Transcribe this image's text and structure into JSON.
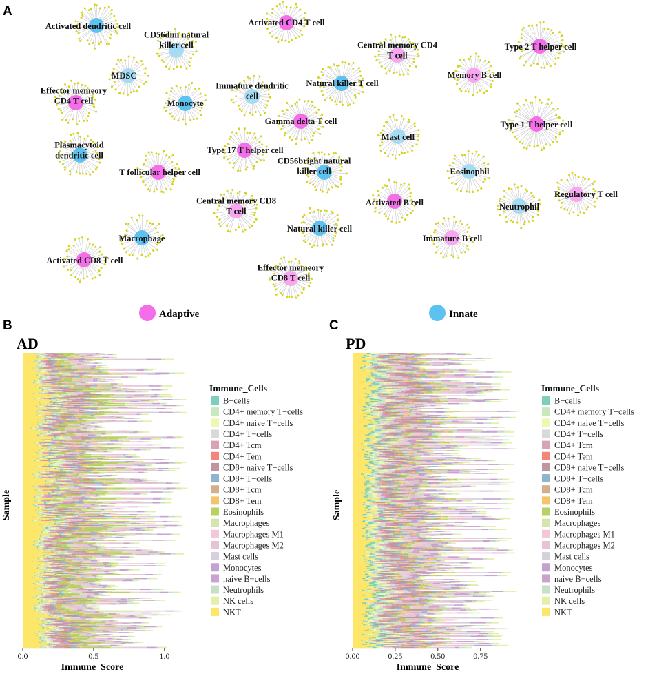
{
  "panels": {
    "a": "A",
    "b": "B",
    "c": "C"
  },
  "network": {
    "legend": [
      {
        "name": "Adaptive",
        "color": "#f36ee8"
      },
      {
        "name": "Innate",
        "color": "#5ec2f0"
      }
    ],
    "colors": {
      "adaptive": "#f36ee8",
      "adaptive_light": "#f7a6ef",
      "innate": "#5ec2f0",
      "innate_light": "#a6dcf3",
      "gene": "#d4d41a",
      "edge": "#c8c8c8"
    },
    "nodes": [
      {
        "id": "activated-dendritic-cell",
        "lines": [
          "Activated dendritic cell"
        ],
        "type": "innate",
        "tone": "strong"
      },
      {
        "id": "activated-cd4-t-cell",
        "lines": [
          "Activated CD4 T cell"
        ],
        "type": "adaptive",
        "tone": "strong"
      },
      {
        "id": "cd56dim-nk-cell",
        "lines": [
          "CD56dim natural",
          "killer cell"
        ],
        "type": "innate",
        "tone": "light"
      },
      {
        "id": "central-memory-cd4-t-cell",
        "lines": [
          "Central memory CD4",
          "T cell"
        ],
        "type": "adaptive",
        "tone": "light"
      },
      {
        "id": "type-2-t-helper-cell",
        "lines": [
          "Type 2 T helper cell"
        ],
        "type": "adaptive",
        "tone": "strong"
      },
      {
        "id": "mdsc",
        "lines": [
          "MDSC"
        ],
        "type": "innate",
        "tone": "light"
      },
      {
        "id": "memory-b-cell",
        "lines": [
          "Memory B cell"
        ],
        "type": "adaptive",
        "tone": "light"
      },
      {
        "id": "natural-killer-t-cell",
        "lines": [
          "Natural killer T cell"
        ],
        "type": "innate",
        "tone": "strong"
      },
      {
        "id": "effector-memory-cd4-t-cell",
        "lines": [
          "Effector memeory",
          "CD4 T cell"
        ],
        "type": "adaptive",
        "tone": "strong"
      },
      {
        "id": "monocyte",
        "lines": [
          "Monocyte"
        ],
        "type": "innate",
        "tone": "strong"
      },
      {
        "id": "immature-dendritic-cell",
        "lines": [
          "Immature dendritic",
          "cell"
        ],
        "type": "innate",
        "tone": "light"
      },
      {
        "id": "gamma-delta-t-cell",
        "lines": [
          "Gamma delta T cell"
        ],
        "type": "adaptive",
        "tone": "strong"
      },
      {
        "id": "type-1-t-helper-cell",
        "lines": [
          "Type 1 T helper cell"
        ],
        "type": "adaptive",
        "tone": "strong"
      },
      {
        "id": "mast-cell",
        "lines": [
          "Mast cell"
        ],
        "type": "innate",
        "tone": "light"
      },
      {
        "id": "plasmacytoid-dendritic-cell",
        "lines": [
          "Plasmacytoid",
          "dendritic cell"
        ],
        "type": "innate",
        "tone": "strong"
      },
      {
        "id": "type-17-t-helper-cell",
        "lines": [
          "Type 17 T helper cell"
        ],
        "type": "adaptive",
        "tone": "strong"
      },
      {
        "id": "t-follicular-helper-cell",
        "lines": [
          "T follicular helper cell"
        ],
        "type": "adaptive",
        "tone": "strong"
      },
      {
        "id": "cd56bright-nk-cell",
        "lines": [
          "CD56bright natural",
          "killer cell"
        ],
        "type": "innate",
        "tone": "strong"
      },
      {
        "id": "eosinophil",
        "lines": [
          "Eosinophil"
        ],
        "type": "innate",
        "tone": "light"
      },
      {
        "id": "regulatory-t-cell",
        "lines": [
          "Regulatory T cell"
        ],
        "type": "adaptive",
        "tone": "light"
      },
      {
        "id": "activated-b-cell",
        "lines": [
          "Activated B cell"
        ],
        "type": "adaptive",
        "tone": "strong"
      },
      {
        "id": "neutrophil",
        "lines": [
          "Neutrophil"
        ],
        "type": "innate",
        "tone": "light"
      },
      {
        "id": "central-memory-cd8-t-cell",
        "lines": [
          "Central memory CD8",
          "T cell"
        ],
        "type": "adaptive",
        "tone": "light"
      },
      {
        "id": "macrophage",
        "lines": [
          "Macrophage"
        ],
        "type": "innate",
        "tone": "strong"
      },
      {
        "id": "natural-killer-cell",
        "lines": [
          "Natural killer cell"
        ],
        "type": "innate",
        "tone": "strong"
      },
      {
        "id": "immature-b-cell",
        "lines": [
          "Immature  B cell"
        ],
        "type": "adaptive",
        "tone": "light"
      },
      {
        "id": "activated-cd8-t-cell",
        "lines": [
          "Activated CD8 T cell"
        ],
        "type": "adaptive",
        "tone": "strong"
      },
      {
        "id": "effector-memory-cd8-t-cell",
        "lines": [
          "Effector memeory",
          "CD8 T cell"
        ],
        "type": "adaptive",
        "tone": "light"
      }
    ]
  },
  "chart_data": [
    {
      "type": "bar",
      "orientation": "horizontal-stacked",
      "title": "AD",
      "xlabel": "Immune_Score",
      "ylabel": "Sample",
      "xlim": [
        0,
        1.2
      ],
      "xticks": [
        0.0,
        0.5,
        1.0
      ],
      "xtick_labels": [
        "0.0",
        "0.5",
        "1.0"
      ],
      "legend_title": "Immune_Cells",
      "total_range_approx": [
        0.45,
        1.15
      ],
      "series_mean_share": {
        "B−cells": 0.01,
        "CD4+ memory T−cells": 0.03,
        "CD4+ naive T−cells": 0.03,
        "CD4+ T−cells": 0.04,
        "CD4+ Tcm": 0.05,
        "CD4+ Tem": 0.01,
        "CD8+ naive T−cells": 0.06,
        "CD8+ T−cells": 0.03,
        "CD8+ Tcm": 0.02,
        "CD8+ Tem": 0.02,
        "Eosinophils": 0.12,
        "Macrophages": 0.06,
        "Macrophages M1": 0.04,
        "Macrophages M2": 0.08,
        "Mast cells": 0.05,
        "Monocytes": 0.03,
        "naive B−cells": 0.03,
        "Neutrophils": 0.03,
        "NK cells": 0.04,
        "NKT": 0.18
      }
    },
    {
      "type": "bar",
      "orientation": "horizontal-stacked",
      "title": "PD",
      "xlabel": "Immune_Score",
      "ylabel": "Sample",
      "xlim": [
        0,
        1.05
      ],
      "xticks": [
        0.0,
        0.25,
        0.5,
        0.75
      ],
      "xtick_labels": [
        "0.00",
        "0.25",
        "0.50",
        "0.75"
      ],
      "legend_title": "Immune_Cells",
      "total_range_approx": [
        0.4,
        0.95
      ],
      "series_mean_share": {
        "B−cells": 0.03,
        "CD4+ memory T−cells": 0.03,
        "CD4+ naive T−cells": 0.04,
        "CD4+ T−cells": 0.05,
        "CD4+ Tcm": 0.05,
        "CD4+ Tem": 0.01,
        "CD8+ naive T−cells": 0.07,
        "CD8+ T−cells": 0.03,
        "CD8+ Tcm": 0.02,
        "CD8+ Tem": 0.02,
        "Eosinophils": 0.03,
        "Macrophages": 0.04,
        "Macrophages M1": 0.04,
        "Macrophages M2": 0.06,
        "Mast cells": 0.05,
        "Monocytes": 0.03,
        "naive B−cells": 0.04,
        "Neutrophils": 0.03,
        "NK cells": 0.04,
        "NKT": 0.13
      }
    }
  ],
  "immune_cells": [
    {
      "name": "B−cells",
      "color": "#7fcdbb"
    },
    {
      "name": "CD4+ memory T−cells",
      "color": "#c7e9c0"
    },
    {
      "name": "CD4+ naive T−cells",
      "color": "#edf8b1"
    },
    {
      "name": "CD4+ T−cells",
      "color": "#d9d9d9"
    },
    {
      "name": "CD4+ Tcm",
      "color": "#d6a3b8"
    },
    {
      "name": "CD4+ Tem",
      "color": "#f4857a"
    },
    {
      "name": "CD8+ naive T−cells",
      "color": "#c0969e"
    },
    {
      "name": "CD8+ T−cells",
      "color": "#8fb4d0"
    },
    {
      "name": "CD8+ Tcm",
      "color": "#d2b08b"
    },
    {
      "name": "CD8+ Tem",
      "color": "#f3c56b"
    },
    {
      "name": "Eosinophils",
      "color": "#b8d066"
    },
    {
      "name": "Macrophages",
      "color": "#d6e4b0"
    },
    {
      "name": "Macrophages M1",
      "color": "#f5c6d8"
    },
    {
      "name": "Macrophages M2",
      "color": "#e6c4d6"
    },
    {
      "name": "Mast cells",
      "color": "#d4d0dc"
    },
    {
      "name": "Monocytes",
      "color": "#c3a2d0"
    },
    {
      "name": "naive B−cells",
      "color": "#cba2cf"
    },
    {
      "name": "Neutrophils",
      "color": "#c9e0c8"
    },
    {
      "name": "NK cells",
      "color": "#e4f0a8"
    },
    {
      "name": "NKT",
      "color": "#fde668"
    }
  ]
}
